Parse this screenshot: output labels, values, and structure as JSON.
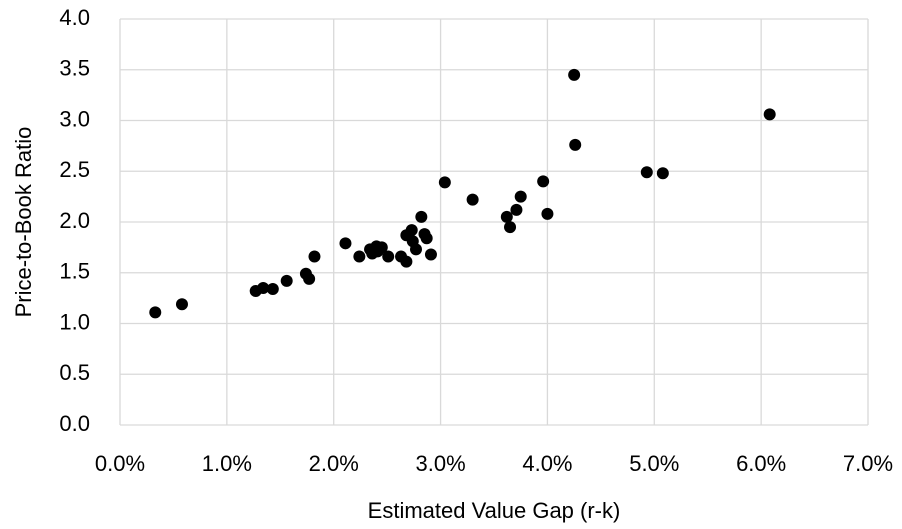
{
  "chart_data": {
    "type": "scatter",
    "x_label": "Estimated Value Gap (r-k)",
    "y_label": "Price-to-Book Ratio",
    "color": "#000000",
    "grid": true,
    "xlim": [
      0,
      7
    ],
    "ylim": [
      0,
      4
    ],
    "xticks": [
      {
        "value": 0,
        "label": "0.0%"
      },
      {
        "value": 1,
        "label": "1.0%"
      },
      {
        "value": 2,
        "label": "2.0%"
      },
      {
        "value": 3,
        "label": "3.0%"
      },
      {
        "value": 4,
        "label": "4.0%"
      },
      {
        "value": 5,
        "label": "5.0%"
      },
      {
        "value": 6,
        "label": "6.0%"
      },
      {
        "value": 7,
        "label": "7.0%"
      }
    ],
    "yticks": [
      {
        "value": 0,
        "label": "0.0"
      },
      0.5,
      {
        "value": 1,
        "label": "1.0"
      },
      1.5,
      {
        "value": 2,
        "label": "2.0"
      },
      2.5,
      {
        "value": 3,
        "label": "3.0"
      },
      3.5,
      {
        "value": 4,
        "label": "4.0"
      }
    ],
    "x": [
      0.33,
      0.58,
      1.27,
      1.34,
      1.43,
      1.56,
      1.74,
      1.77,
      1.82,
      2.11,
      2.24,
      2.34,
      2.36,
      2.4,
      2.41,
      2.45,
      2.51,
      2.63,
      2.68,
      2.68,
      2.73,
      2.74,
      2.77,
      2.82,
      2.85,
      2.87,
      2.91,
      3.04,
      3.3,
      3.62,
      3.65,
      3.71,
      3.75,
      3.96,
      4.0,
      4.25,
      4.26,
      4.93,
      5.08,
      6.08
    ],
    "values": [
      1.11,
      1.19,
      1.32,
      1.35,
      1.34,
      1.42,
      1.49,
      1.44,
      1.66,
      1.79,
      1.66,
      1.73,
      1.69,
      1.76,
      1.71,
      1.75,
      1.66,
      1.66,
      1.61,
      1.87,
      1.92,
      1.81,
      1.73,
      2.05,
      1.88,
      1.84,
      1.68,
      2.39,
      2.22,
      2.05,
      1.95,
      2.12,
      2.25,
      2.4,
      2.08,
      3.45,
      2.76,
      2.49,
      2.48,
      3.06
    ]
  }
}
